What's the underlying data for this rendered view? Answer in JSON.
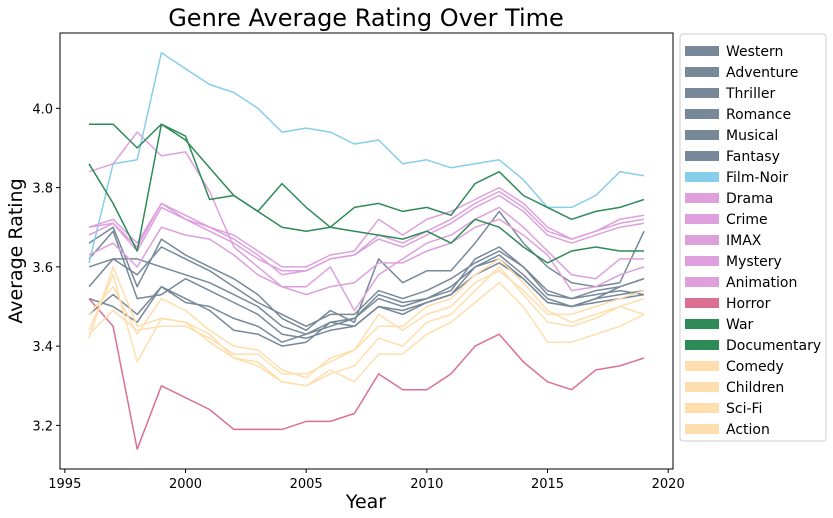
{
  "chart_data": {
    "type": "line",
    "title": "Genre Average Rating Over Time",
    "xlabel": "Year",
    "ylabel": "Average Rating",
    "xlim": [
      1994.8,
      2020.2
    ],
    "ylim": [
      3.09,
      4.19
    ],
    "xticks": [
      1995,
      2000,
      2005,
      2010,
      2015,
      2020
    ],
    "yticks": [
      3.2,
      3.4,
      3.6,
      3.8,
      4.0
    ],
    "grid": false,
    "legend_position": "right",
    "x": [
      1996,
      1997,
      1998,
      1999,
      2000,
      2001,
      2002,
      2003,
      2004,
      2005,
      2006,
      2007,
      2008,
      2009,
      2010,
      2011,
      2012,
      2013,
      2014,
      2015,
      2016,
      2017,
      2018,
      2019
    ],
    "series": [
      {
        "name": "Western",
        "color": "#778899",
        "values": [
          3.48,
          3.53,
          3.48,
          3.55,
          3.51,
          3.5,
          3.47,
          3.45,
          3.41,
          3.43,
          3.46,
          3.45,
          3.5,
          3.49,
          3.51,
          3.53,
          3.6,
          3.62,
          3.57,
          3.51,
          3.5,
          3.52,
          3.55,
          3.57
        ]
      },
      {
        "name": "Adventure",
        "color": "#778899",
        "values": [
          3.55,
          3.62,
          3.62,
          3.6,
          3.58,
          3.56,
          3.53,
          3.5,
          3.45,
          3.43,
          3.45,
          3.47,
          3.52,
          3.5,
          3.52,
          3.55,
          3.6,
          3.63,
          3.58,
          3.52,
          3.5,
          3.52,
          3.53,
          3.54
        ]
      },
      {
        "name": "Thriller",
        "color": "#778899",
        "values": [
          3.52,
          3.5,
          3.46,
          3.55,
          3.52,
          3.49,
          3.44,
          3.43,
          3.4,
          3.41,
          3.46,
          3.47,
          3.53,
          3.51,
          3.52,
          3.54,
          3.62,
          3.65,
          3.6,
          3.53,
          3.52,
          3.53,
          3.54,
          3.53
        ]
      },
      {
        "name": "Romance",
        "color": "#778899",
        "values": [
          3.6,
          3.62,
          3.58,
          3.65,
          3.62,
          3.59,
          3.55,
          3.51,
          3.48,
          3.45,
          3.48,
          3.48,
          3.54,
          3.52,
          3.54,
          3.57,
          3.61,
          3.64,
          3.6,
          3.54,
          3.52,
          3.54,
          3.55,
          3.57
        ]
      },
      {
        "name": "Musical",
        "color": "#778899",
        "values": [
          3.66,
          3.7,
          3.55,
          3.67,
          3.63,
          3.6,
          3.57,
          3.53,
          3.47,
          3.44,
          3.49,
          3.46,
          3.62,
          3.56,
          3.59,
          3.59,
          3.66,
          3.74,
          3.66,
          3.6,
          3.56,
          3.55,
          3.56,
          3.69
        ]
      },
      {
        "name": "Fantasy",
        "color": "#778899",
        "values": [
          3.62,
          3.69,
          3.52,
          3.53,
          3.57,
          3.54,
          3.51,
          3.48,
          3.43,
          3.42,
          3.44,
          3.45,
          3.5,
          3.48,
          3.51,
          3.53,
          3.58,
          3.61,
          3.57,
          3.51,
          3.5,
          3.51,
          3.52,
          3.53
        ]
      },
      {
        "name": "Film-Noir",
        "color": "#87ceeb",
        "values": [
          3.61,
          3.86,
          3.87,
          4.14,
          4.1,
          4.06,
          4.04,
          4.0,
          3.94,
          3.95,
          3.94,
          3.91,
          3.92,
          3.86,
          3.87,
          3.85,
          3.86,
          3.87,
          3.82,
          3.75,
          3.75,
          3.78,
          3.84,
          3.83
        ]
      },
      {
        "name": "Drama",
        "color": "#dda0dd",
        "values": [
          3.7,
          3.71,
          3.65,
          3.76,
          3.72,
          3.69,
          3.66,
          3.62,
          3.59,
          3.59,
          3.62,
          3.63,
          3.67,
          3.65,
          3.68,
          3.71,
          3.75,
          3.78,
          3.74,
          3.68,
          3.66,
          3.68,
          3.7,
          3.71
        ]
      },
      {
        "name": "Crime",
        "color": "#dda0dd",
        "values": [
          3.68,
          3.71,
          3.64,
          3.75,
          3.72,
          3.7,
          3.67,
          3.63,
          3.58,
          3.59,
          3.62,
          3.63,
          3.68,
          3.66,
          3.69,
          3.72,
          3.76,
          3.79,
          3.75,
          3.69,
          3.67,
          3.69,
          3.71,
          3.72
        ]
      },
      {
        "name": "IMAX",
        "color": "#dda0dd",
        "values": [
          3.84,
          3.86,
          3.94,
          3.88,
          3.89,
          3.79,
          3.65,
          3.6,
          3.55,
          3.55,
          3.6,
          3.49,
          3.58,
          3.62,
          3.66,
          3.68,
          3.72,
          3.75,
          3.7,
          3.64,
          3.58,
          3.57,
          3.62,
          3.62
        ]
      },
      {
        "name": "Mystery",
        "color": "#dda0dd",
        "values": [
          3.7,
          3.72,
          3.66,
          3.76,
          3.73,
          3.7,
          3.68,
          3.64,
          3.6,
          3.6,
          3.63,
          3.64,
          3.72,
          3.68,
          3.72,
          3.74,
          3.77,
          3.8,
          3.76,
          3.7,
          3.67,
          3.69,
          3.72,
          3.73
        ]
      },
      {
        "name": "Animation",
        "color": "#dda0dd",
        "values": [
          3.63,
          3.66,
          3.6,
          3.7,
          3.68,
          3.67,
          3.63,
          3.58,
          3.55,
          3.53,
          3.55,
          3.56,
          3.61,
          3.61,
          3.64,
          3.66,
          3.7,
          3.72,
          3.68,
          3.63,
          3.54,
          3.55,
          3.58,
          3.6
        ]
      },
      {
        "name": "Horror",
        "color": "#db7093",
        "values": [
          3.52,
          3.45,
          3.14,
          3.3,
          3.27,
          3.24,
          3.19,
          3.19,
          3.19,
          3.21,
          3.21,
          3.23,
          3.33,
          3.29,
          3.29,
          3.33,
          3.4,
          3.43,
          3.36,
          3.31,
          3.29,
          3.34,
          3.35,
          3.37
        ]
      },
      {
        "name": "War",
        "color": "#2e8b57",
        "values": [
          3.96,
          3.96,
          3.9,
          3.96,
          3.92,
          3.85,
          3.78,
          3.74,
          3.81,
          3.75,
          3.7,
          3.75,
          3.76,
          3.74,
          3.75,
          3.73,
          3.81,
          3.84,
          3.78,
          3.75,
          3.72,
          3.74,
          3.75,
          3.77
        ]
      },
      {
        "name": "Documentary",
        "color": "#2e8b57",
        "values": [
          3.86,
          3.76,
          3.64,
          3.96,
          3.93,
          3.77,
          3.78,
          3.74,
          3.7,
          3.69,
          3.7,
          3.69,
          3.68,
          3.67,
          3.69,
          3.66,
          3.72,
          3.7,
          3.65,
          3.61,
          3.64,
          3.65,
          3.64,
          3.64
        ]
      },
      {
        "name": "Comedy",
        "color": "#ffdead",
        "values": [
          3.43,
          3.49,
          3.44,
          3.45,
          3.45,
          3.42,
          3.38,
          3.38,
          3.33,
          3.33,
          3.36,
          3.39,
          3.48,
          3.44,
          3.48,
          3.5,
          3.56,
          3.59,
          3.54,
          3.48,
          3.48,
          3.5,
          3.52,
          3.54
        ]
      },
      {
        "name": "Children",
        "color": "#ffdead",
        "values": [
          3.44,
          3.58,
          3.36,
          3.47,
          3.46,
          3.43,
          3.37,
          3.36,
          3.31,
          3.3,
          3.34,
          3.31,
          3.38,
          3.38,
          3.43,
          3.46,
          3.51,
          3.56,
          3.5,
          3.41,
          3.41,
          3.43,
          3.45,
          3.48
        ]
      },
      {
        "name": "Sci-Fi",
        "color": "#ffdead",
        "values": [
          3.42,
          3.6,
          3.45,
          3.47,
          3.46,
          3.41,
          3.37,
          3.35,
          3.31,
          3.3,
          3.33,
          3.35,
          3.42,
          3.4,
          3.46,
          3.48,
          3.54,
          3.6,
          3.53,
          3.46,
          3.45,
          3.47,
          3.5,
          3.48
        ]
      },
      {
        "name": "Action",
        "color": "#ffdead",
        "values": [
          3.48,
          3.55,
          3.43,
          3.52,
          3.49,
          3.44,
          3.4,
          3.39,
          3.34,
          3.32,
          3.37,
          3.39,
          3.45,
          3.45,
          3.5,
          3.52,
          3.58,
          3.62,
          3.56,
          3.49,
          3.46,
          3.48,
          3.5,
          3.52
        ]
      }
    ]
  }
}
